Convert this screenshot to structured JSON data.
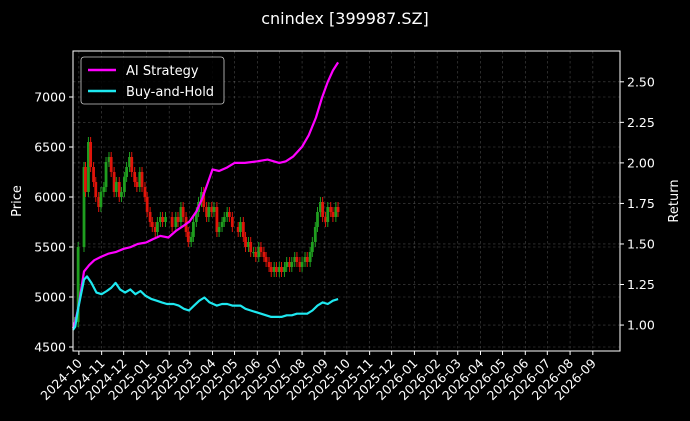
{
  "chart_data": {
    "type": "line",
    "title": "cnindex [399987.SZ]",
    "ylabel_left": "Price",
    "ylabel_right": "Return",
    "x_ticks": [
      "2024-10",
      "2024-11",
      "2024-12",
      "2025-01",
      "2025-02",
      "2025-03",
      "2025-04",
      "2025-05",
      "2025-06",
      "2025-07",
      "2025-08",
      "2025-09",
      "2025-10",
      "2025-11",
      "2025-12",
      "2026-01",
      "2026-02",
      "2026-03",
      "2026-04",
      "2026-05",
      "2026-06",
      "2026-07",
      "2026-08",
      "2026-09"
    ],
    "xlim": [
      "2024-09-23",
      "2026-10-08"
    ],
    "ylim_left": [
      4460,
      7460
    ],
    "ylim_right": [
      0.84,
      2.69
    ],
    "y_ticks_left": [
      4500,
      5000,
      5500,
      6000,
      6500,
      7000
    ],
    "y_ticks_right": [
      "1.00",
      "1.25",
      "1.50",
      "1.75",
      "2.00",
      "2.25",
      "2.50"
    ],
    "grid": true,
    "legend_position": "upper-left",
    "candle_colors": {
      "up": "#1f9e1f",
      "down": "#e0140a"
    },
    "price_candles": [
      {
        "x": "2024-09-25",
        "close": 4750
      },
      {
        "x": "2024-09-30",
        "close": 5500
      },
      {
        "x": "2024-10-08",
        "close": 6300
      },
      {
        "x": "2024-10-10",
        "close": 6050
      },
      {
        "x": "2024-10-14",
        "close": 6550
      },
      {
        "x": "2024-10-17",
        "close": 6300
      },
      {
        "x": "2024-10-21",
        "close": 6150
      },
      {
        "x": "2024-10-24",
        "close": 6000
      },
      {
        "x": "2024-10-28",
        "close": 5900
      },
      {
        "x": "2024-10-31",
        "close": 6050
      },
      {
        "x": "2024-11-04",
        "close": 6100
      },
      {
        "x": "2024-11-07",
        "close": 6350
      },
      {
        "x": "2024-11-11",
        "close": 6400
      },
      {
        "x": "2024-11-14",
        "close": 6250
      },
      {
        "x": "2024-11-18",
        "close": 6050
      },
      {
        "x": "2024-11-21",
        "close": 6150
      },
      {
        "x": "2024-11-25",
        "close": 6000
      },
      {
        "x": "2024-11-28",
        "close": 6050
      },
      {
        "x": "2024-12-02",
        "close": 6200
      },
      {
        "x": "2024-12-05",
        "close": 6300
      },
      {
        "x": "2024-12-09",
        "close": 6400
      },
      {
        "x": "2024-12-12",
        "close": 6250
      },
      {
        "x": "2024-12-16",
        "close": 6150
      },
      {
        "x": "2024-12-19",
        "close": 6100
      },
      {
        "x": "2024-12-23",
        "close": 6250
      },
      {
        "x": "2024-12-26",
        "close": 6100
      },
      {
        "x": "2024-12-30",
        "close": 6000
      },
      {
        "x": "2025-01-02",
        "close": 5850
      },
      {
        "x": "2025-01-06",
        "close": 5750
      },
      {
        "x": "2025-01-09",
        "close": 5700
      },
      {
        "x": "2025-01-13",
        "close": 5650
      },
      {
        "x": "2025-01-16",
        "close": 5750
      },
      {
        "x": "2025-01-20",
        "close": 5800
      },
      {
        "x": "2025-01-23",
        "close": 5750
      },
      {
        "x": "2025-01-27",
        "close": 5800
      },
      {
        "x": "2025-02-05",
        "close": 5700
      },
      {
        "x": "2025-02-10",
        "close": 5800
      },
      {
        "x": "2025-02-13",
        "close": 5750
      },
      {
        "x": "2025-02-17",
        "close": 5900
      },
      {
        "x": "2025-02-20",
        "close": 5800
      },
      {
        "x": "2025-02-24",
        "close": 5650
      },
      {
        "x": "2025-02-27",
        "close": 5550
      },
      {
        "x": "2025-03-03",
        "close": 5600
      },
      {
        "x": "2025-03-06",
        "close": 5750
      },
      {
        "x": "2025-03-10",
        "close": 5850
      },
      {
        "x": "2025-03-13",
        "close": 5950
      },
      {
        "x": "2025-03-17",
        "close": 6050
      },
      {
        "x": "2025-03-20",
        "close": 5900
      },
      {
        "x": "2025-03-24",
        "close": 5800
      },
      {
        "x": "2025-03-27",
        "close": 5900
      },
      {
        "x": "2025-03-31",
        "close": 5850
      },
      {
        "x": "2025-04-03",
        "close": 5900
      },
      {
        "x": "2025-04-07",
        "close": 5650
      },
      {
        "x": "2025-04-10",
        "close": 5700
      },
      {
        "x": "2025-04-14",
        "close": 5750
      },
      {
        "x": "2025-04-17",
        "close": 5800
      },
      {
        "x": "2025-04-21",
        "close": 5850
      },
      {
        "x": "2025-04-24",
        "close": 5800
      },
      {
        "x": "2025-04-28",
        "close": 5700
      },
      {
        "x": "2025-05-06",
        "close": 5650
      },
      {
        "x": "2025-05-09",
        "close": 5750
      },
      {
        "x": "2025-05-13",
        "close": 5600
      },
      {
        "x": "2025-05-16",
        "close": 5500
      },
      {
        "x": "2025-05-20",
        "close": 5550
      },
      {
        "x": "2025-05-23",
        "close": 5450
      },
      {
        "x": "2025-05-27",
        "close": 5450
      },
      {
        "x": "2025-05-30",
        "close": 5400
      },
      {
        "x": "2025-06-03",
        "close": 5500
      },
      {
        "x": "2025-06-06",
        "close": 5450
      },
      {
        "x": "2025-06-10",
        "close": 5400
      },
      {
        "x": "2025-06-13",
        "close": 5350
      },
      {
        "x": "2025-06-17",
        "close": 5300
      },
      {
        "x": "2025-06-20",
        "close": 5250
      },
      {
        "x": "2025-06-24",
        "close": 5300
      },
      {
        "x": "2025-06-27",
        "close": 5250
      },
      {
        "x": "2025-07-01",
        "close": 5300
      },
      {
        "x": "2025-07-04",
        "close": 5250
      },
      {
        "x": "2025-07-08",
        "close": 5300
      },
      {
        "x": "2025-07-11",
        "close": 5350
      },
      {
        "x": "2025-07-15",
        "close": 5300
      },
      {
        "x": "2025-07-18",
        "close": 5350
      },
      {
        "x": "2025-07-22",
        "close": 5400
      },
      {
        "x": "2025-07-25",
        "close": 5350
      },
      {
        "x": "2025-07-29",
        "close": 5300
      },
      {
        "x": "2025-08-01",
        "close": 5350
      },
      {
        "x": "2025-08-05",
        "close": 5400
      },
      {
        "x": "2025-08-08",
        "close": 5350
      },
      {
        "x": "2025-08-12",
        "close": 5450
      },
      {
        "x": "2025-08-15",
        "close": 5550
      },
      {
        "x": "2025-08-19",
        "close": 5700
      },
      {
        "x": "2025-08-22",
        "close": 5850
      },
      {
        "x": "2025-08-26",
        "close": 5950
      },
      {
        "x": "2025-08-29",
        "close": 5800
      },
      {
        "x": "2025-09-02",
        "close": 5750
      },
      {
        "x": "2025-09-05",
        "close": 5900
      },
      {
        "x": "2025-09-09",
        "close": 5850
      },
      {
        "x": "2025-09-12",
        "close": 5800
      },
      {
        "x": "2025-09-16",
        "close": 5900
      },
      {
        "x": "2025-09-19",
        "close": 5850
      }
    ],
    "series": [
      {
        "name": "AI Strategy",
        "color": "#ff00ff",
        "points": [
          {
            "x": "2024-09-23",
            "y": 0.98
          },
          {
            "x": "2024-09-26",
            "y": 1.02
          },
          {
            "x": "2024-09-30",
            "y": 1.1
          },
          {
            "x": "2024-10-08",
            "y": 1.33
          },
          {
            "x": "2024-10-15",
            "y": 1.37
          },
          {
            "x": "2024-10-22",
            "y": 1.4
          },
          {
            "x": "2024-10-31",
            "y": 1.42
          },
          {
            "x": "2024-11-10",
            "y": 1.44
          },
          {
            "x": "2024-11-20",
            "y": 1.45
          },
          {
            "x": "2024-12-01",
            "y": 1.47
          },
          {
            "x": "2024-12-10",
            "y": 1.48
          },
          {
            "x": "2024-12-20",
            "y": 1.5
          },
          {
            "x": "2025-01-01",
            "y": 1.51
          },
          {
            "x": "2025-01-10",
            "y": 1.53
          },
          {
            "x": "2025-01-20",
            "y": 1.55
          },
          {
            "x": "2025-01-31",
            "y": 1.54
          },
          {
            "x": "2025-02-10",
            "y": 1.58
          },
          {
            "x": "2025-02-20",
            "y": 1.61
          },
          {
            "x": "2025-03-01",
            "y": 1.64
          },
          {
            "x": "2025-03-10",
            "y": 1.7
          },
          {
            "x": "2025-03-18",
            "y": 1.78
          },
          {
            "x": "2025-03-25",
            "y": 1.87
          },
          {
            "x": "2025-04-01",
            "y": 1.96
          },
          {
            "x": "2025-04-10",
            "y": 1.95
          },
          {
            "x": "2025-04-20",
            "y": 1.97
          },
          {
            "x": "2025-05-01",
            "y": 2.0
          },
          {
            "x": "2025-05-15",
            "y": 2.0
          },
          {
            "x": "2025-06-01",
            "y": 2.01
          },
          {
            "x": "2025-06-15",
            "y": 2.02
          },
          {
            "x": "2025-07-01",
            "y": 2.0
          },
          {
            "x": "2025-07-10",
            "y": 2.01
          },
          {
            "x": "2025-07-20",
            "y": 2.04
          },
          {
            "x": "2025-08-01",
            "y": 2.1
          },
          {
            "x": "2025-08-10",
            "y": 2.17
          },
          {
            "x": "2025-08-20",
            "y": 2.28
          },
          {
            "x": "2025-08-28",
            "y": 2.4
          },
          {
            "x": "2025-09-05",
            "y": 2.5
          },
          {
            "x": "2025-09-12",
            "y": 2.57
          },
          {
            "x": "2025-09-19",
            "y": 2.62
          }
        ]
      },
      {
        "name": "Buy-and-Hold",
        "color": "#1ee8f0",
        "points": [
          {
            "x": "2024-09-23",
            "y": 0.97
          },
          {
            "x": "2024-09-26",
            "y": 0.99
          },
          {
            "x": "2024-09-30",
            "y": 1.1
          },
          {
            "x": "2024-10-08",
            "y": 1.28
          },
          {
            "x": "2024-10-12",
            "y": 1.3
          },
          {
            "x": "2024-10-18",
            "y": 1.26
          },
          {
            "x": "2024-10-25",
            "y": 1.2
          },
          {
            "x": "2024-11-01",
            "y": 1.19
          },
          {
            "x": "2024-11-08",
            "y": 1.21
          },
          {
            "x": "2024-11-14",
            "y": 1.23
          },
          {
            "x": "2024-11-20",
            "y": 1.26
          },
          {
            "x": "2024-11-26",
            "y": 1.22
          },
          {
            "x": "2024-12-03",
            "y": 1.2
          },
          {
            "x": "2024-12-10",
            "y": 1.22
          },
          {
            "x": "2024-12-17",
            "y": 1.19
          },
          {
            "x": "2024-12-24",
            "y": 1.21
          },
          {
            "x": "2024-12-31",
            "y": 1.18
          },
          {
            "x": "2025-01-08",
            "y": 1.16
          },
          {
            "x": "2025-01-15",
            "y": 1.15
          },
          {
            "x": "2025-01-22",
            "y": 1.14
          },
          {
            "x": "2025-01-29",
            "y": 1.13
          },
          {
            "x": "2025-02-07",
            "y": 1.13
          },
          {
            "x": "2025-02-14",
            "y": 1.12
          },
          {
            "x": "2025-02-21",
            "y": 1.1
          },
          {
            "x": "2025-02-28",
            "y": 1.09
          },
          {
            "x": "2025-03-07",
            "y": 1.12
          },
          {
            "x": "2025-03-14",
            "y": 1.15
          },
          {
            "x": "2025-03-21",
            "y": 1.17
          },
          {
            "x": "2025-03-28",
            "y": 1.14
          },
          {
            "x": "2025-04-07",
            "y": 1.12
          },
          {
            "x": "2025-04-14",
            "y": 1.13
          },
          {
            "x": "2025-04-21",
            "y": 1.13
          },
          {
            "x": "2025-04-28",
            "y": 1.12
          },
          {
            "x": "2025-05-09",
            "y": 1.12
          },
          {
            "x": "2025-05-16",
            "y": 1.1
          },
          {
            "x": "2025-05-23",
            "y": 1.09
          },
          {
            "x": "2025-05-30",
            "y": 1.08
          },
          {
            "x": "2025-06-06",
            "y": 1.07
          },
          {
            "x": "2025-06-13",
            "y": 1.06
          },
          {
            "x": "2025-06-20",
            "y": 1.05
          },
          {
            "x": "2025-06-27",
            "y": 1.05
          },
          {
            "x": "2025-07-04",
            "y": 1.05
          },
          {
            "x": "2025-07-11",
            "y": 1.06
          },
          {
            "x": "2025-07-18",
            "y": 1.06
          },
          {
            "x": "2025-07-25",
            "y": 1.07
          },
          {
            "x": "2025-08-01",
            "y": 1.07
          },
          {
            "x": "2025-08-08",
            "y": 1.07
          },
          {
            "x": "2025-08-15",
            "y": 1.09
          },
          {
            "x": "2025-08-22",
            "y": 1.12
          },
          {
            "x": "2025-08-29",
            "y": 1.14
          },
          {
            "x": "2025-09-05",
            "y": 1.13
          },
          {
            "x": "2025-09-12",
            "y": 1.15
          },
          {
            "x": "2025-09-19",
            "y": 1.16
          }
        ]
      }
    ]
  }
}
